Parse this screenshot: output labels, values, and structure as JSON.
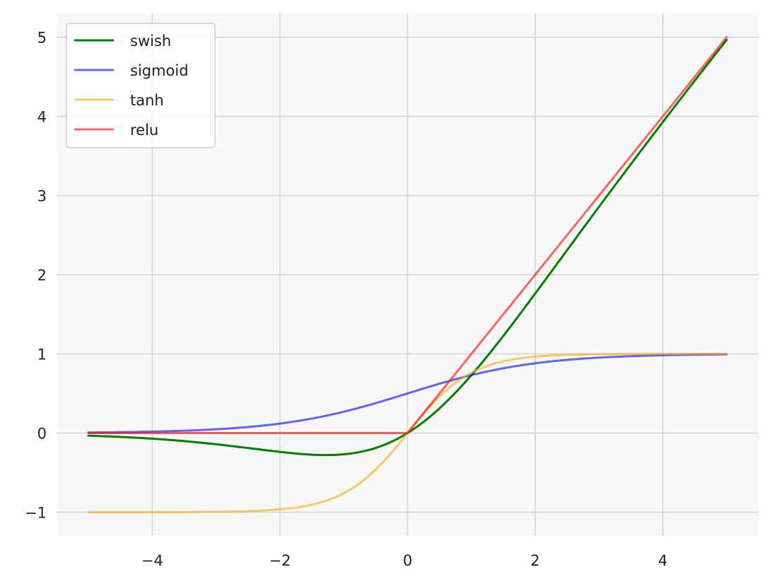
{
  "chart_data": {
    "type": "line",
    "title": "",
    "xlabel": "",
    "ylabel": "",
    "xlim": [
      -5.5,
      5.5
    ],
    "ylim": [
      -1.3,
      5.3
    ],
    "xticks": [
      -4,
      -2,
      0,
      2,
      4
    ],
    "yticks": [
      -1,
      0,
      1,
      2,
      3,
      4,
      5
    ],
    "xtick_labels": [
      "−4",
      "−2",
      "0",
      "2",
      "4"
    ],
    "ytick_labels": [
      "−1",
      "0",
      "1",
      "2",
      "3",
      "4",
      "5"
    ],
    "grid": true,
    "legend_position": "top-left",
    "background": "#f8f8f8",
    "x_range": [
      -5,
      5
    ],
    "series": [
      {
        "name": "swish",
        "color": "#007f00",
        "function": "x*sigmoid(x)",
        "opacity": 1.0,
        "x": [
          -5,
          -4,
          -3,
          -2,
          -1.28,
          -1,
          0,
          1,
          2,
          3,
          4,
          5
        ],
        "y": [
          -0.033,
          -0.072,
          -0.142,
          -0.238,
          -0.278,
          -0.269,
          0,
          0.731,
          1.762,
          2.858,
          3.928,
          4.967
        ]
      },
      {
        "name": "sigmoid",
        "color": "#0000ff",
        "function": "sigmoid(x)",
        "opacity": 0.6,
        "x": [
          -5,
          -4,
          -3,
          -2,
          -1,
          0,
          1,
          2,
          3,
          4,
          5
        ],
        "y": [
          0.007,
          0.018,
          0.047,
          0.119,
          0.269,
          0.5,
          0.731,
          0.881,
          0.953,
          0.982,
          0.993
        ]
      },
      {
        "name": "tanh",
        "color": "#ffa500",
        "function": "tanh(x)",
        "opacity": 0.6,
        "x": [
          -5,
          -4,
          -3,
          -2,
          -1,
          0,
          1,
          2,
          3,
          4,
          5
        ],
        "y": [
          -1.0,
          -0.999,
          -0.995,
          -0.964,
          -0.762,
          0,
          0.762,
          0.964,
          0.995,
          0.999,
          1.0
        ]
      },
      {
        "name": "relu",
        "color": "#ff0000",
        "function": "max(0,x)",
        "opacity": 0.6,
        "x": [
          -5,
          0,
          5
        ],
        "y": [
          0,
          0,
          5
        ]
      }
    ]
  }
}
